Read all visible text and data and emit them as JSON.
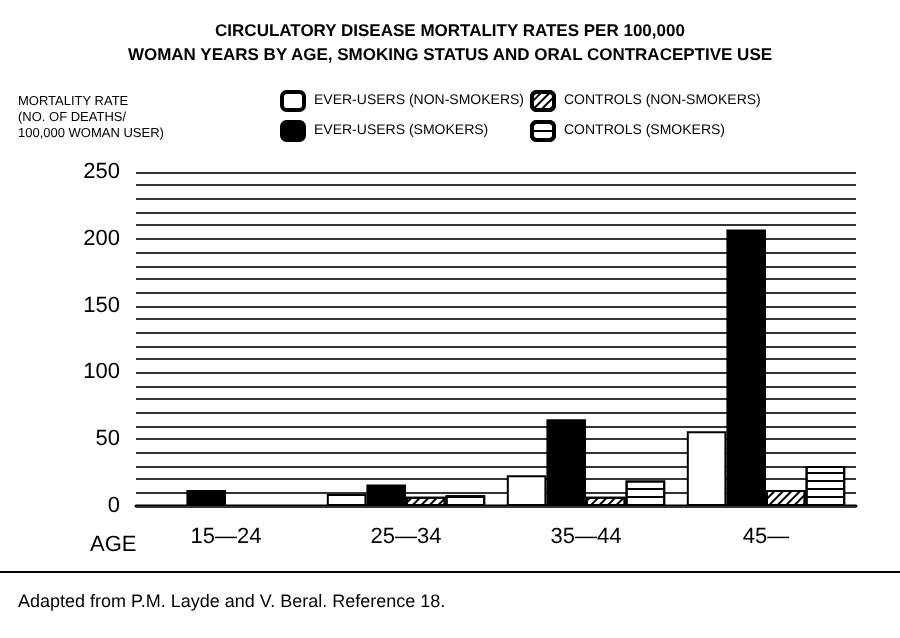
{
  "chart_data": {
    "type": "bar",
    "title": "CIRCULATORY DISEASE MORTALITY RATES PER 100,000\nWOMAN YEARS BY AGE, SMOKING STATUS AND ORAL CONTRACEPTIVE USE",
    "ylabel": "MORTALITY RATE\n(NO. OF DEATHS/\n100,000 WOMAN USER)",
    "xlabel": "AGE",
    "categories": [
      "15—24",
      "25—34",
      "35—44",
      "45—"
    ],
    "series": [
      {
        "name": "EVER-USERS (NON-SMOKERS)",
        "color": "#ffffff",
        "values": [
          null,
          9,
          23,
          56
        ]
      },
      {
        "name": "EVER-USERS (SMOKERS)",
        "color": "#000000",
        "values": [
          12,
          16,
          65,
          207
        ]
      },
      {
        "name": "CONTROLS (NON-SMOKERS)",
        "color": "#ffffff",
        "values": [
          null,
          7,
          7,
          12
        ]
      },
      {
        "name": "CONTROLS (SMOKERS)",
        "color": "#ffffff",
        "values": [
          null,
          8,
          19,
          30
        ]
      }
    ],
    "ylim": [
      0,
      250
    ],
    "yticks": [
      0,
      {
        "value": 10,
        "label": null
      },
      {
        "value": 20,
        "label": null
      },
      {
        "value": 30,
        "label": null
      },
      {
        "value": 40,
        "label": null
      },
      50,
      {
        "value": 60,
        "label": null
      },
      {
        "value": 70,
        "label": null
      },
      {
        "value": 80,
        "label": null
      },
      {
        "value": 90,
        "label": null
      },
      100,
      {
        "value": 110,
        "label": null
      },
      {
        "value": 120,
        "label": null
      },
      {
        "value": 130,
        "label": null
      },
      {
        "value": 140,
        "label": null
      },
      150,
      {
        "value": 160,
        "label": null
      },
      {
        "value": 170,
        "label": null
      },
      {
        "value": 180,
        "label": null
      },
      {
        "value": 190,
        "label": null
      },
      200,
      {
        "value": 210,
        "label": null
      },
      {
        "value": 220,
        "label": null
      },
      {
        "value": 230,
        "label": null
      },
      {
        "value": 240,
        "label": null
      },
      250
    ],
    "grid": "y",
    "legend": "top",
    "annotations": [
      "Adapted from P.M. Layde and V. Beral. Reference 18."
    ]
  }
}
